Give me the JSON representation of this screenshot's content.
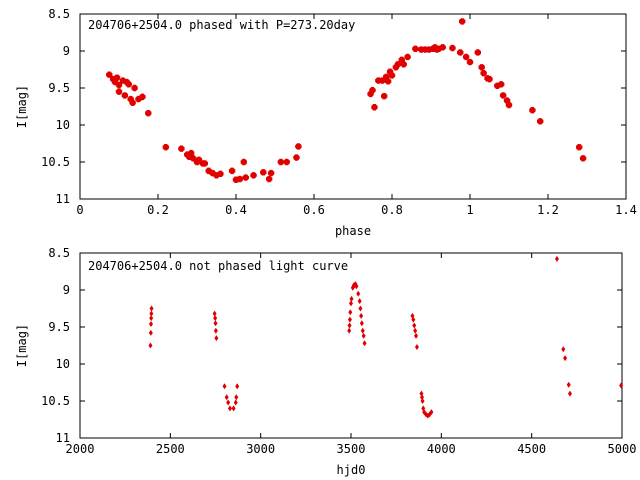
{
  "chart_data": [
    {
      "type": "scatter",
      "title": "204706+2504.0 phased with P=273.20day",
      "xlabel": "phase",
      "ylabel": "I[mag]",
      "xlim": [
        0,
        1.4
      ],
      "ylim": [
        11,
        8.5
      ],
      "y_inverted": true,
      "grid": false,
      "legend": "none",
      "color": "#e00000",
      "marker": "square",
      "x_ticks": [
        0,
        0.2,
        0.4,
        0.6,
        0.8,
        1,
        1.2,
        1.4
      ],
      "x_tick_labels": [
        "0",
        "0.2",
        "0.4",
        "0.6",
        "0.8",
        "1",
        "1.2",
        "1.4"
      ],
      "y_ticks": [
        8.5,
        9,
        9.5,
        10,
        10.5,
        11
      ],
      "y_tick_labels": [
        "8.5",
        "9",
        "9.5",
        "10",
        "10.5",
        "11"
      ],
      "points": [
        [
          0.075,
          9.32
        ],
        [
          0.085,
          9.38
        ],
        [
          0.09,
          9.42
        ],
        [
          0.095,
          9.36
        ],
        [
          0.1,
          9.46
        ],
        [
          0.1,
          9.55
        ],
        [
          0.11,
          9.4
        ],
        [
          0.115,
          9.6
        ],
        [
          0.12,
          9.42
        ],
        [
          0.125,
          9.45
        ],
        [
          0.13,
          9.65
        ],
        [
          0.135,
          9.7
        ],
        [
          0.14,
          9.5
        ],
        [
          0.15,
          9.65
        ],
        [
          0.16,
          9.62
        ],
        [
          0.175,
          9.84
        ],
        [
          0.22,
          10.3
        ],
        [
          0.26,
          10.32
        ],
        [
          0.275,
          10.4
        ],
        [
          0.28,
          10.43
        ],
        [
          0.285,
          10.38
        ],
        [
          0.29,
          10.45
        ],
        [
          0.3,
          10.5
        ],
        [
          0.305,
          10.47
        ],
        [
          0.315,
          10.52
        ],
        [
          0.32,
          10.52
        ],
        [
          0.33,
          10.62
        ],
        [
          0.34,
          10.65
        ],
        [
          0.35,
          10.68
        ],
        [
          0.36,
          10.66
        ],
        [
          0.39,
          10.62
        ],
        [
          0.4,
          10.74
        ],
        [
          0.41,
          10.73
        ],
        [
          0.42,
          10.5
        ],
        [
          0.425,
          10.71
        ],
        [
          0.445,
          10.68
        ],
        [
          0.47,
          10.64
        ],
        [
          0.485,
          10.73
        ],
        [
          0.49,
          10.65
        ],
        [
          0.515,
          10.5
        ],
        [
          0.53,
          10.5
        ],
        [
          0.555,
          10.44
        ],
        [
          0.56,
          10.29
        ],
        [
          0.745,
          9.58
        ],
        [
          0.75,
          9.53
        ],
        [
          0.755,
          9.76
        ],
        [
          0.765,
          9.4
        ],
        [
          0.775,
          9.4
        ],
        [
          0.78,
          9.61
        ],
        [
          0.785,
          9.35
        ],
        [
          0.79,
          9.41
        ],
        [
          0.795,
          9.28
        ],
        [
          0.8,
          9.33
        ],
        [
          0.81,
          9.22
        ],
        [
          0.815,
          9.18
        ],
        [
          0.825,
          9.12
        ],
        [
          0.83,
          9.18
        ],
        [
          0.84,
          9.08
        ],
        [
          0.86,
          8.97
        ],
        [
          0.875,
          8.98
        ],
        [
          0.885,
          8.98
        ],
        [
          0.895,
          8.98
        ],
        [
          0.905,
          8.97
        ],
        [
          0.91,
          8.95
        ],
        [
          0.915,
          8.98
        ],
        [
          0.92,
          8.97
        ],
        [
          0.93,
          8.95
        ],
        [
          0.955,
          8.96
        ],
        [
          0.975,
          9.02
        ],
        [
          0.98,
          8.6
        ],
        [
          0.99,
          9.08
        ],
        [
          1.0,
          9.15
        ],
        [
          1.02,
          9.02
        ],
        [
          1.03,
          9.22
        ],
        [
          1.035,
          9.3
        ],
        [
          1.045,
          9.37
        ],
        [
          1.05,
          9.38
        ],
        [
          1.07,
          9.47
        ],
        [
          1.08,
          9.45
        ],
        [
          1.085,
          9.6
        ],
        [
          1.095,
          9.67
        ],
        [
          1.1,
          9.73
        ],
        [
          1.16,
          9.8
        ],
        [
          1.18,
          9.95
        ],
        [
          1.28,
          10.3
        ],
        [
          1.29,
          10.45
        ]
      ]
    },
    {
      "type": "scatter",
      "title": "204706+2504.0 not phased light curve",
      "xlabel": "hjd0",
      "ylabel": "I[mag]",
      "xlim": [
        2000,
        5000
      ],
      "ylim": [
        11,
        8.5
      ],
      "y_inverted": true,
      "grid": false,
      "legend": "none",
      "color": "#e00000",
      "marker": "diamond",
      "x_ticks": [
        2000,
        2500,
        3000,
        3500,
        4000,
        4500,
        5000
      ],
      "x_tick_labels": [
        "2000",
        "2500",
        "3000",
        "3500",
        "4000",
        "4500",
        "5000"
      ],
      "y_ticks": [
        8.5,
        9,
        9.5,
        10,
        10.5,
        11
      ],
      "y_tick_labels": [
        "8.5",
        "9",
        "9.5",
        "10",
        "10.5",
        "11"
      ],
      "points": [
        [
          2390,
          9.75
        ],
        [
          2392,
          9.58
        ],
        [
          2393,
          9.46
        ],
        [
          2394,
          9.38
        ],
        [
          2395,
          9.32
        ],
        [
          2396,
          9.25
        ],
        [
          2745,
          9.32
        ],
        [
          2748,
          9.38
        ],
        [
          2750,
          9.45
        ],
        [
          2752,
          9.55
        ],
        [
          2755,
          9.65
        ],
        [
          2800,
          10.3
        ],
        [
          2812,
          10.45
        ],
        [
          2820,
          10.52
        ],
        [
          2830,
          10.6
        ],
        [
          2850,
          10.6
        ],
        [
          2862,
          10.52
        ],
        [
          2865,
          10.45
        ],
        [
          2870,
          10.3
        ],
        [
          3490,
          9.55
        ],
        [
          3492,
          9.48
        ],
        [
          3494,
          9.4
        ],
        [
          3496,
          9.3
        ],
        [
          3500,
          9.18
        ],
        [
          3503,
          9.12
        ],
        [
          3510,
          8.97
        ],
        [
          3515,
          8.94
        ],
        [
          3520,
          8.93
        ],
        [
          3525,
          8.92
        ],
        [
          3530,
          8.95
        ],
        [
          3540,
          9.05
        ],
        [
          3548,
          9.15
        ],
        [
          3552,
          9.25
        ],
        [
          3556,
          9.35
        ],
        [
          3560,
          9.45
        ],
        [
          3565,
          9.55
        ],
        [
          3570,
          9.62
        ],
        [
          3575,
          9.72
        ],
        [
          3840,
          9.35
        ],
        [
          3845,
          9.4
        ],
        [
          3850,
          9.48
        ],
        [
          3855,
          9.55
        ],
        [
          3860,
          9.62
        ],
        [
          3865,
          9.77
        ],
        [
          3890,
          10.4
        ],
        [
          3893,
          10.45
        ],
        [
          3896,
          10.5
        ],
        [
          3900,
          10.6
        ],
        [
          3905,
          10.65
        ],
        [
          3915,
          10.68
        ],
        [
          3925,
          10.7
        ],
        [
          3935,
          10.68
        ],
        [
          3945,
          10.65
        ],
        [
          4640,
          8.58
        ],
        [
          4675,
          9.8
        ],
        [
          4685,
          9.92
        ],
        [
          4705,
          10.28
        ],
        [
          4712,
          10.4
        ],
        [
          4995,
          10.29
        ]
      ]
    }
  ]
}
